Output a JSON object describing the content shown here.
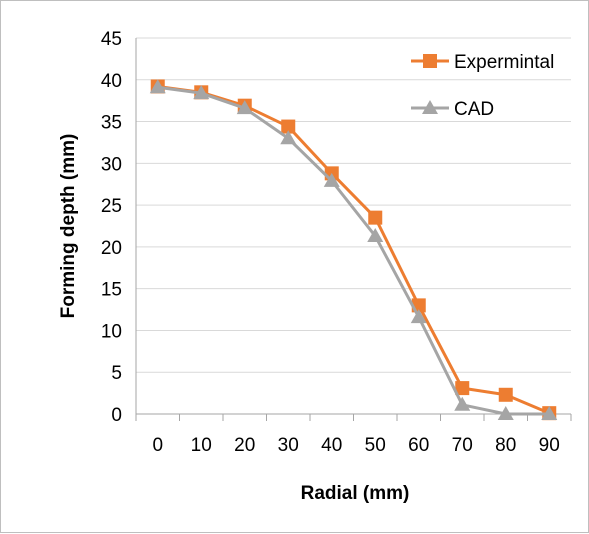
{
  "chart_data": {
    "type": "line",
    "title": "",
    "xlabel": "Radial  (mm)",
    "ylabel": "Forming depth (mm)",
    "categories": [
      "0",
      "10",
      "20",
      "30",
      "40",
      "50",
      "60",
      "70",
      "80",
      "90"
    ],
    "ylim": [
      0,
      45
    ],
    "yticks": [
      0,
      5,
      10,
      15,
      20,
      25,
      30,
      35,
      40,
      45
    ],
    "grid": true,
    "legend": "top-right",
    "series": [
      {
        "name": "Expermintal",
        "color": "#ED7D31",
        "marker": "square",
        "values": [
          39.2,
          38.5,
          36.9,
          34.4,
          28.8,
          23.5,
          13.0,
          3.1,
          2.3,
          0.1
        ]
      },
      {
        "name": "CAD",
        "color": "#A5A5A5",
        "marker": "triangle",
        "values": [
          39.1,
          38.4,
          36.6,
          33.0,
          27.9,
          21.3,
          11.6,
          1.1,
          0.0,
          0.0
        ]
      }
    ]
  }
}
